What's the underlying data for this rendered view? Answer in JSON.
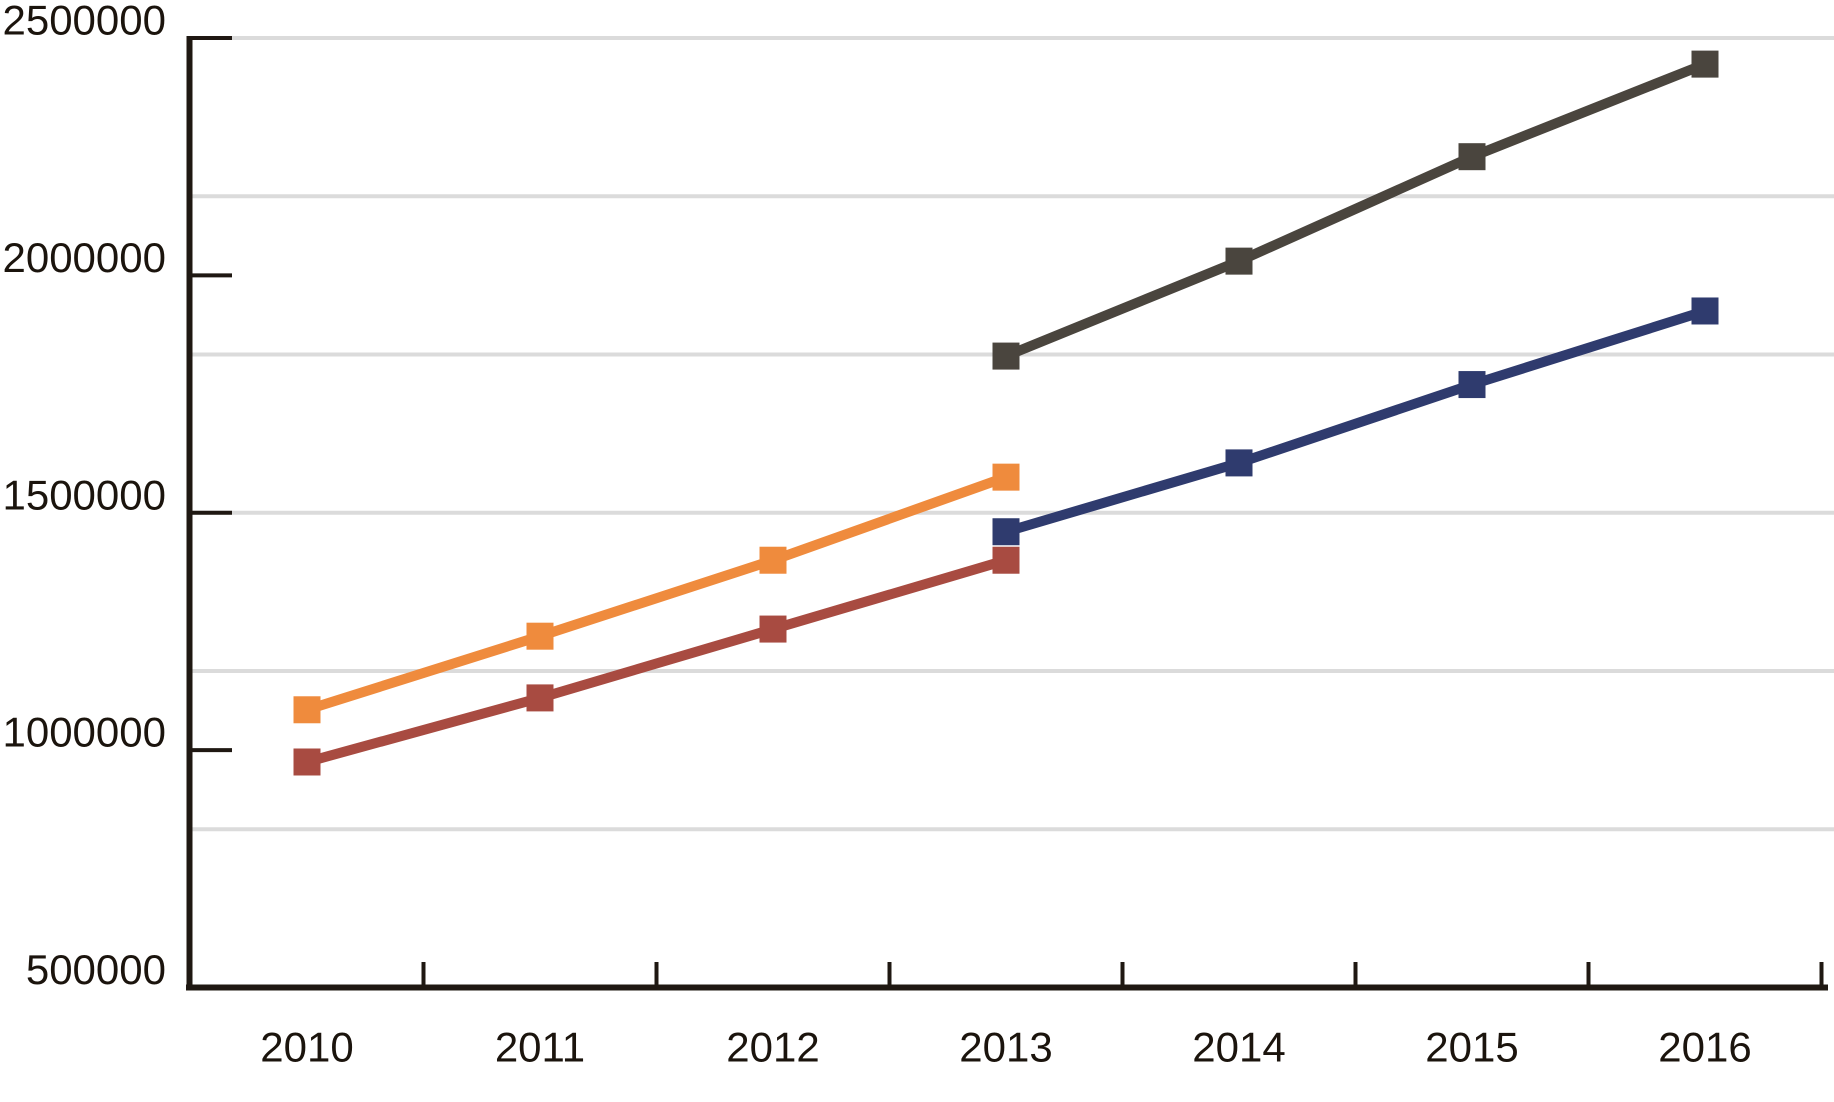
{
  "chart_data": {
    "type": "line",
    "title": "",
    "xlabel": "",
    "ylabel": "",
    "legend": "none",
    "grid": "horizontal-only",
    "marker_shape": "square",
    "background_color": "#ffffff",
    "gridline_color": "#dbdbdb",
    "axis_color": "#1f1812",
    "label_color": "#1b140d",
    "x_axis": {
      "tick_labels": [
        "2010",
        "2011",
        "2012",
        "2013",
        "2014",
        "2015",
        "2016"
      ],
      "years": [
        2010,
        2011,
        2012,
        2013,
        2014,
        2015,
        2016
      ]
    },
    "y_axis": {
      "min": 500000,
      "max": 2500000,
      "tick_labels": [
        "2500000",
        "2000000",
        "1500000",
        "1000000",
        "500000"
      ],
      "tick_values": [
        2500000,
        2000000,
        1500000,
        1000000,
        500000
      ],
      "gridline_values": [
        2500000,
        2166667,
        1833333,
        1500000,
        1166667,
        833333
      ]
    },
    "series": [
      {
        "name": "orange-line",
        "color": "#EF8B3D",
        "x": [
          2010,
          2011,
          2012,
          2013
        ],
        "values": [
          1085000,
          1240000,
          1400000,
          1575000
        ]
      },
      {
        "name": "dark-red-line",
        "color": "#A84B41",
        "x": [
          2010,
          2011,
          2012,
          2013
        ],
        "values": [
          975000,
          1110000,
          1255000,
          1400000
        ]
      },
      {
        "name": "navy-line",
        "color": "#2F3B6E",
        "x": [
          2013,
          2014,
          2015,
          2016
        ],
        "values": [
          1460000,
          1605000,
          1770000,
          1925000
        ]
      },
      {
        "name": "gray-line",
        "color": "#4A453E",
        "x": [
          2013,
          2014,
          2015,
          2016
        ],
        "values": [
          1830000,
          2030000,
          2250000,
          2445000
        ]
      }
    ]
  }
}
